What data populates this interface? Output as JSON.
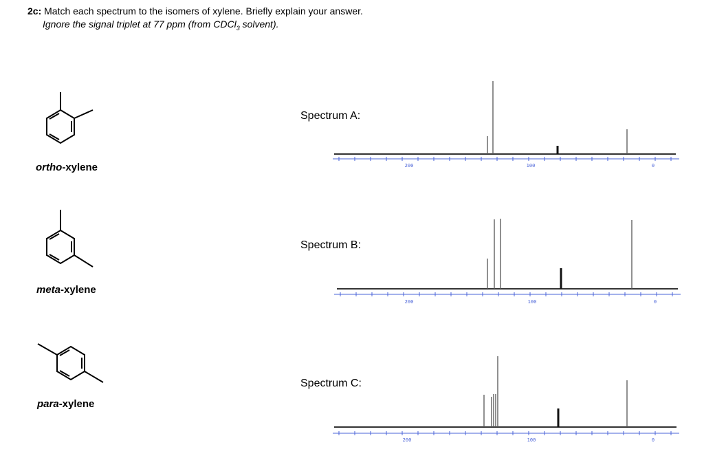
{
  "question": {
    "number": "2c:",
    "prompt": "Match each spectrum to the isomers of xylene. Briefly explain your answer.",
    "note_before": "Ignore the signal triplet at 77 ppm (from CDCl",
    "note_sub": "3",
    "note_after": " solvent)."
  },
  "molecules": [
    {
      "prefix": "ortho",
      "suffix": "-xylene"
    },
    {
      "prefix": "meta",
      "suffix": "-xylene"
    },
    {
      "prefix": "para",
      "suffix": "-xylene"
    }
  ],
  "spectra": [
    {
      "label": "Spectrum A:",
      "axis_labels": [
        "200",
        "100",
        "0"
      ]
    },
    {
      "label": "Spectrum B:",
      "axis_labels": [
        "200",
        "100",
        "0"
      ]
    },
    {
      "label": "Spectrum C:",
      "axis_labels": [
        "200",
        "100",
        "0"
      ]
    }
  ],
  "colors": {
    "axis": "#4a63d8",
    "peak": "#555555",
    "baseline": "#333333"
  }
}
